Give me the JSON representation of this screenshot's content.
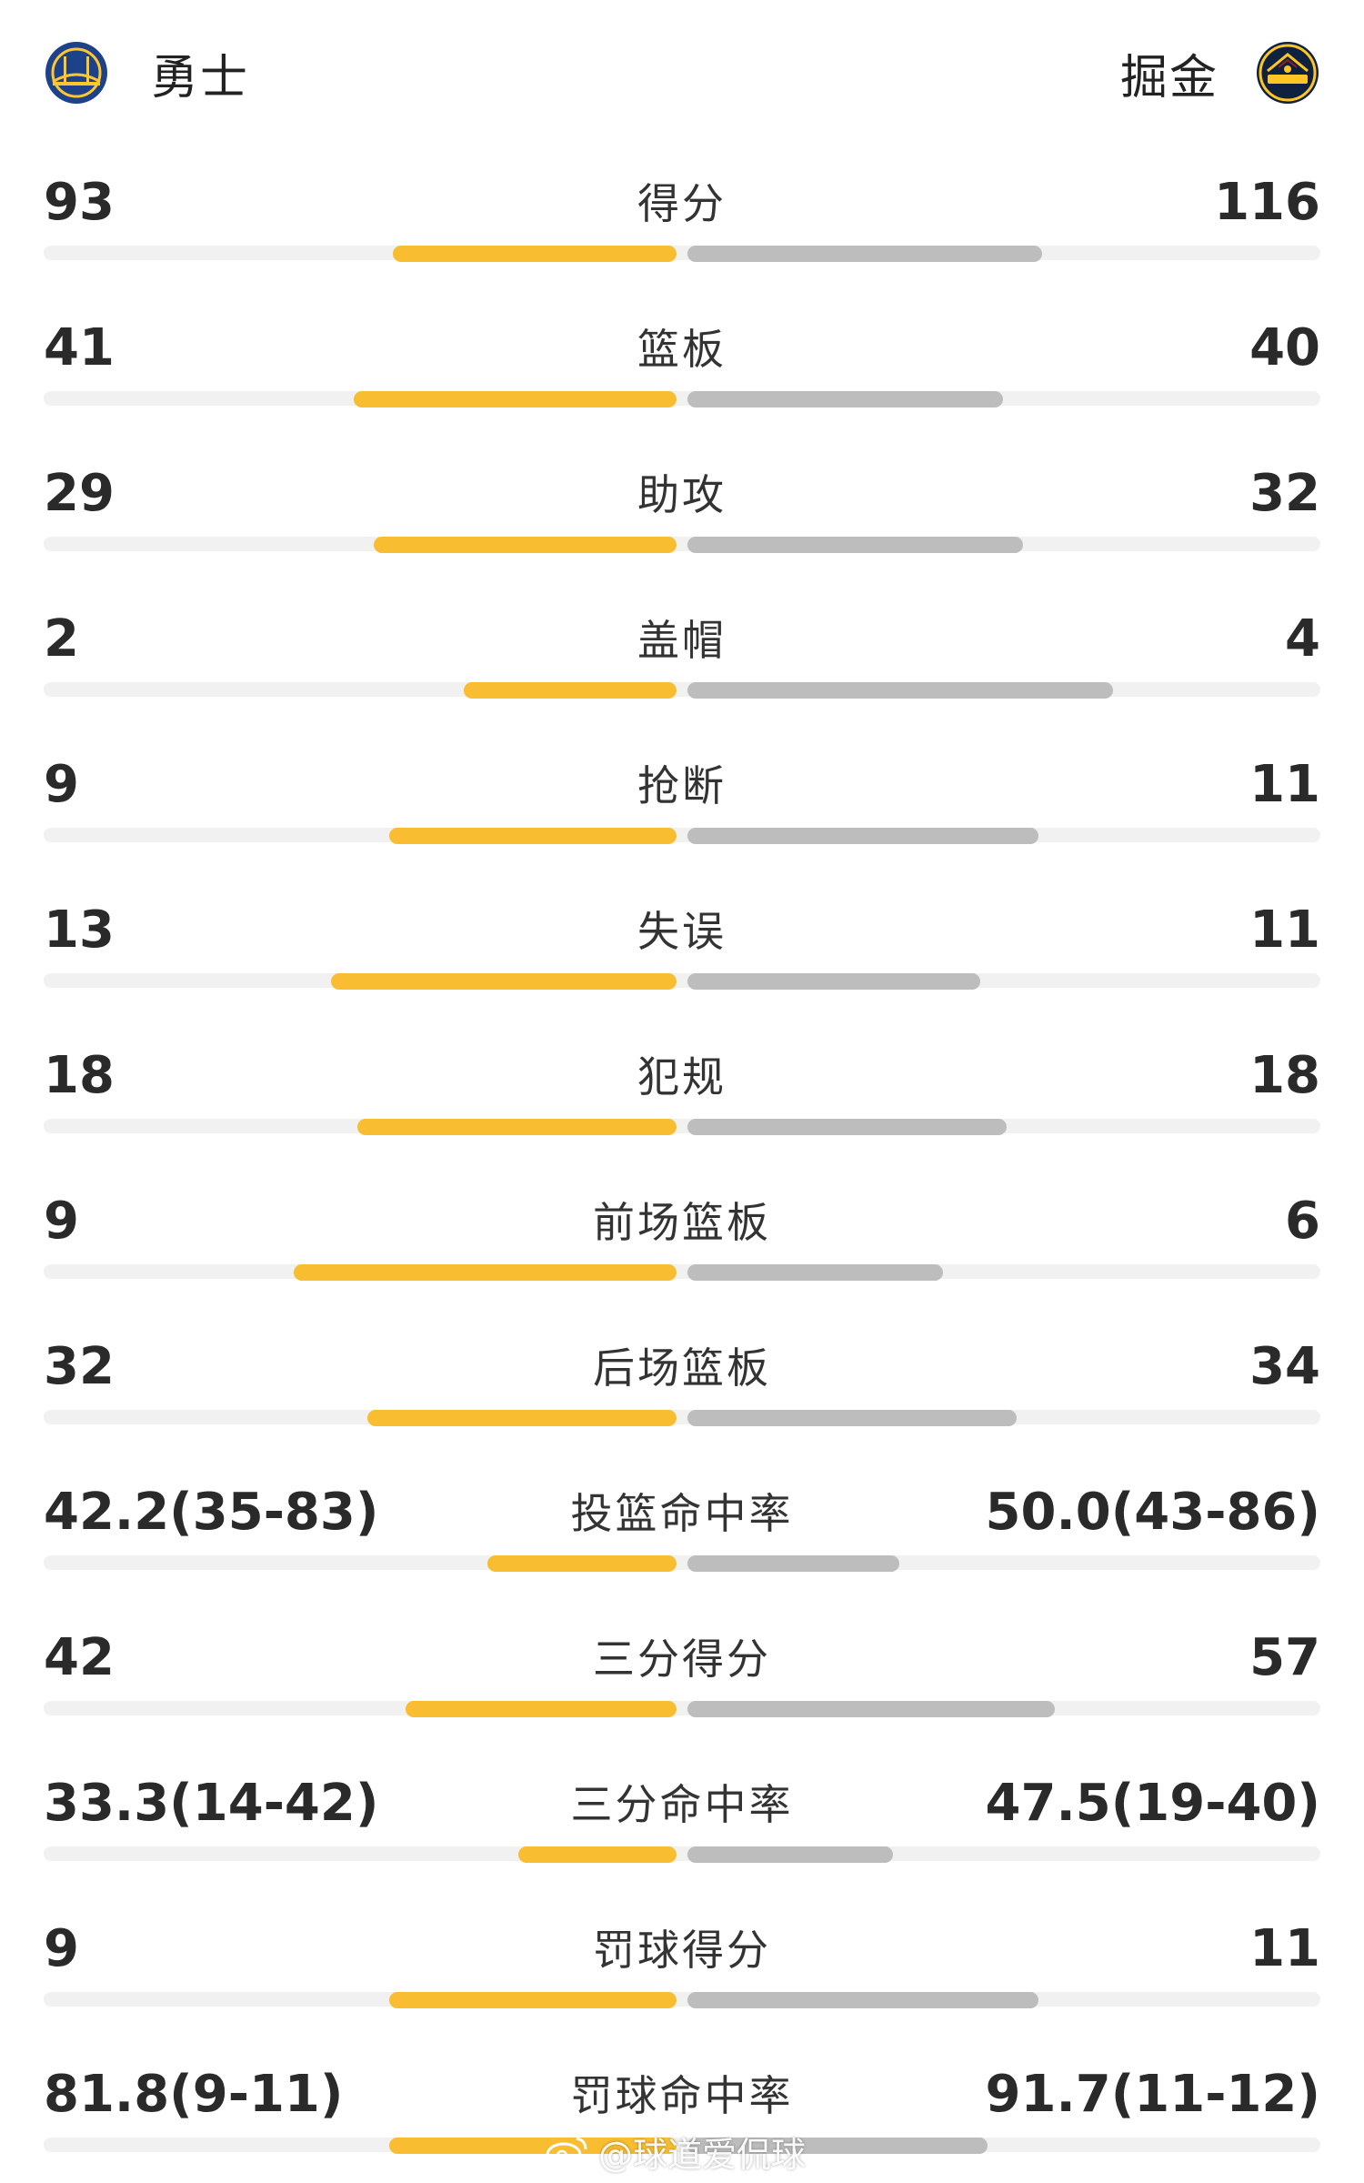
{
  "header": {
    "left_team": {
      "name": "勇士",
      "logo": "warriors-logo"
    },
    "right_team": {
      "name": "掘金",
      "logo": "nuggets-logo"
    }
  },
  "colors": {
    "left": "#f9bd32",
    "right": "#bdbdbd",
    "track": "#f1f1f1"
  },
  "stats": [
    {
      "label": "得分",
      "left": "93",
      "right": "116",
      "left_share": 0.445,
      "right_share": 0.555
    },
    {
      "label": "篮板",
      "left": "41",
      "right": "40",
      "left_share": 0.506,
      "right_share": 0.494
    },
    {
      "label": "助攻",
      "left": "29",
      "right": "32",
      "left_share": 0.475,
      "right_share": 0.525
    },
    {
      "label": "盖帽",
      "left": "2",
      "right": "4",
      "left_share": 0.333,
      "right_share": 0.667
    },
    {
      "label": "抢断",
      "left": "9",
      "right": "11",
      "left_share": 0.45,
      "right_share": 0.55
    },
    {
      "label": "失误",
      "left": "13",
      "right": "11",
      "left_share": 0.542,
      "right_share": 0.458
    },
    {
      "label": "犯规",
      "left": "18",
      "right": "18",
      "left_share": 0.5,
      "right_share": 0.5
    },
    {
      "label": "前场篮板",
      "left": "9",
      "right": "6",
      "left_share": 0.6,
      "right_share": 0.4
    },
    {
      "label": "后场篮板",
      "left": "32",
      "right": "34",
      "left_share": 0.485,
      "right_share": 0.515
    },
    {
      "label": "投篮命中率",
      "left": "42.2(35-83)",
      "right": "50.0(43-86)",
      "left_share": 0.296,
      "right_share": 0.332
    },
    {
      "label": "三分得分",
      "left": "42",
      "right": "57",
      "left_share": 0.424,
      "right_share": 0.576
    },
    {
      "label": "三分命中率",
      "left": "33.3(14-42)",
      "right": "47.5(19-40)",
      "left_share": 0.248,
      "right_share": 0.322
    },
    {
      "label": "罚球得分",
      "left": "9",
      "right": "11",
      "left_share": 0.45,
      "right_share": 0.55
    },
    {
      "label": "罚球命中率",
      "left": "81.8(9-11)",
      "right": "91.7(11-12)",
      "left_share": 0.45,
      "right_share": 0.47
    }
  ],
  "watermark": {
    "text": "@球道爱侃球",
    "icon": "weibo-icon"
  }
}
